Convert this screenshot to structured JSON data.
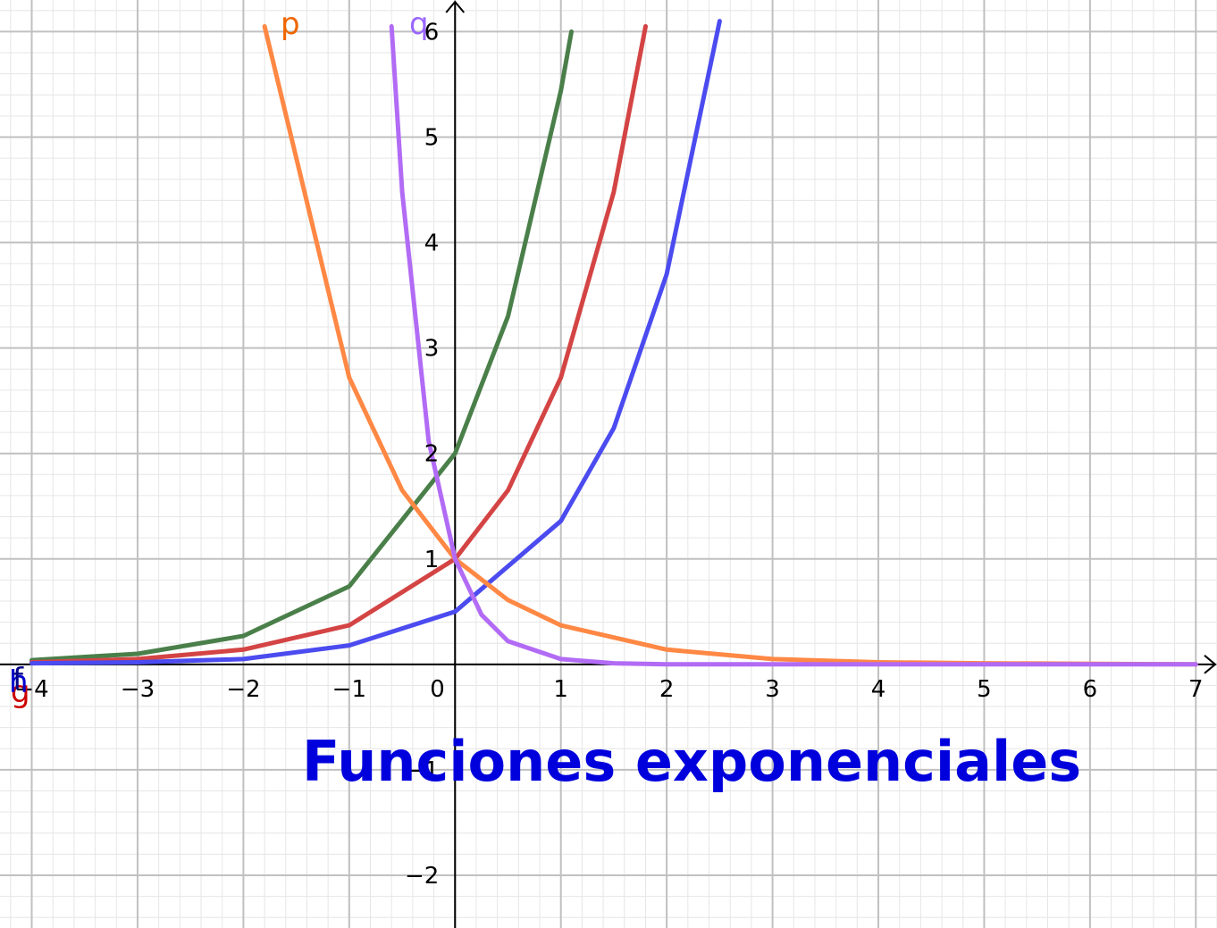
{
  "chart_data": {
    "type": "line",
    "title": "Funciones exponenciales",
    "xlabel": "",
    "ylabel": "",
    "xlim": [
      -4.3,
      7.2
    ],
    "ylim": [
      -2.5,
      6.3
    ],
    "grid": true,
    "x_ticks": [
      "−4",
      "−3",
      "−2",
      "−1",
      "0",
      "1",
      "2",
      "3",
      "4",
      "5",
      "6",
      "7"
    ],
    "y_ticks": [
      "−2",
      "−1",
      "1",
      "2",
      "3",
      "4",
      "5",
      "6"
    ],
    "series": [
      {
        "name": "f",
        "color": "#4a7f4a",
        "points": [
          [
            -4,
            0.04
          ],
          [
            -3,
            0.1
          ],
          [
            -2,
            0.27
          ],
          [
            -1,
            0.74
          ],
          [
            0,
            2.0
          ],
          [
            0.5,
            3.3
          ],
          [
            1,
            5.44
          ],
          [
            1.1,
            6.0
          ]
        ]
      },
      {
        "name": "g",
        "color": "#d44444",
        "points": [
          [
            -4,
            0.02
          ],
          [
            -3,
            0.05
          ],
          [
            -2,
            0.14
          ],
          [
            -1,
            0.37
          ],
          [
            0,
            1.0
          ],
          [
            0.5,
            1.65
          ],
          [
            1,
            2.72
          ],
          [
            1.5,
            4.48
          ],
          [
            1.8,
            6.05
          ]
        ]
      },
      {
        "name": "h",
        "color": "#4b4bf0",
        "points": [
          [
            -4,
            0.01
          ],
          [
            -3,
            0.02
          ],
          [
            -2,
            0.05
          ],
          [
            -1,
            0.18
          ],
          [
            0,
            0.5
          ],
          [
            1,
            1.36
          ],
          [
            1.5,
            2.24
          ],
          [
            2,
            3.7
          ],
          [
            2.5,
            6.1
          ]
        ]
      },
      {
        "name": "p",
        "color": "#ff8844",
        "points": [
          [
            -1.8,
            6.05
          ],
          [
            -1,
            2.72
          ],
          [
            -0.5,
            1.65
          ],
          [
            0,
            1.0
          ],
          [
            0.5,
            0.61
          ],
          [
            1,
            0.37
          ],
          [
            2,
            0.14
          ],
          [
            3,
            0.05
          ],
          [
            4,
            0.02
          ],
          [
            5,
            0.01
          ],
          [
            7,
            0.0
          ]
        ]
      },
      {
        "name": "q",
        "color": "#b26bf5",
        "points": [
          [
            -0.6,
            6.05
          ],
          [
            -0.5,
            4.48
          ],
          [
            -0.25,
            2.12
          ],
          [
            0,
            1.0
          ],
          [
            0.25,
            0.47
          ],
          [
            0.5,
            0.22
          ],
          [
            1,
            0.05
          ],
          [
            1.5,
            0.01
          ],
          [
            2,
            0.0
          ],
          [
            7,
            0.0
          ]
        ]
      }
    ],
    "labels": {
      "p": {
        "text": "p",
        "color": "#ee6600"
      },
      "q": {
        "text": "q",
        "color": "#9966ff"
      },
      "f": {
        "text": "f",
        "color": "#000088"
      },
      "g": {
        "text": "g",
        "color": "#cc0000"
      },
      "h": {
        "text": "h",
        "color": "#0000cc"
      }
    }
  }
}
